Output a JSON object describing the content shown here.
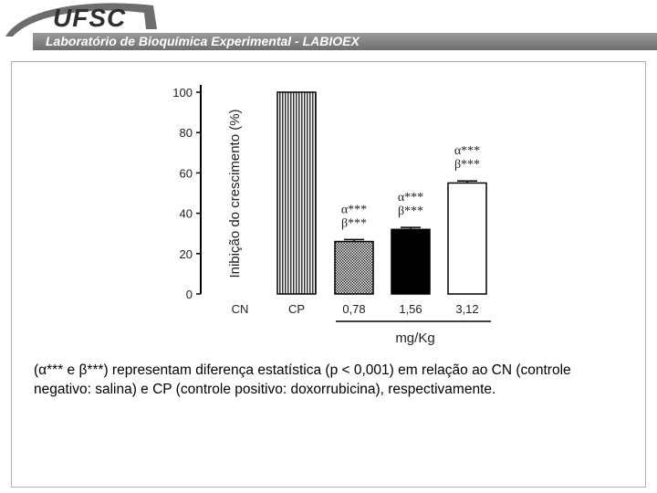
{
  "header": {
    "logo": "UFSC",
    "banner": "Laboratório de Bioquímica Experimental - LABIOEX",
    "brand_color": "#7f7f7f"
  },
  "chart_data": {
    "type": "bar",
    "categories": [
      "CN",
      "CP",
      "0,78",
      "1,56",
      "3,12"
    ],
    "values": [
      0,
      100,
      26,
      32,
      55
    ],
    "errors": [
      0,
      0,
      1,
      1,
      1
    ],
    "patterns": [
      "none",
      "vertical-lines",
      "crosshatch",
      "solid-black",
      "white"
    ],
    "significance": [
      "",
      "",
      "α***\nβ***",
      "α***\nβ***",
      "α***\nβ***"
    ],
    "ylim": [
      0,
      100
    ],
    "yticks": [
      0,
      20,
      40,
      60,
      80,
      100
    ],
    "ylabel": "Inibição do crescimento (%)",
    "xlabel": "mg/Kg",
    "dose_group": [
      "0,78",
      "1,56",
      "3,12"
    ]
  },
  "caption": "(α*** e β***) representam diferença estatística (p < 0,001) em relação ao CN (controle negativo: salina) e CP (controle positivo: doxorrubicina), respectivamente."
}
